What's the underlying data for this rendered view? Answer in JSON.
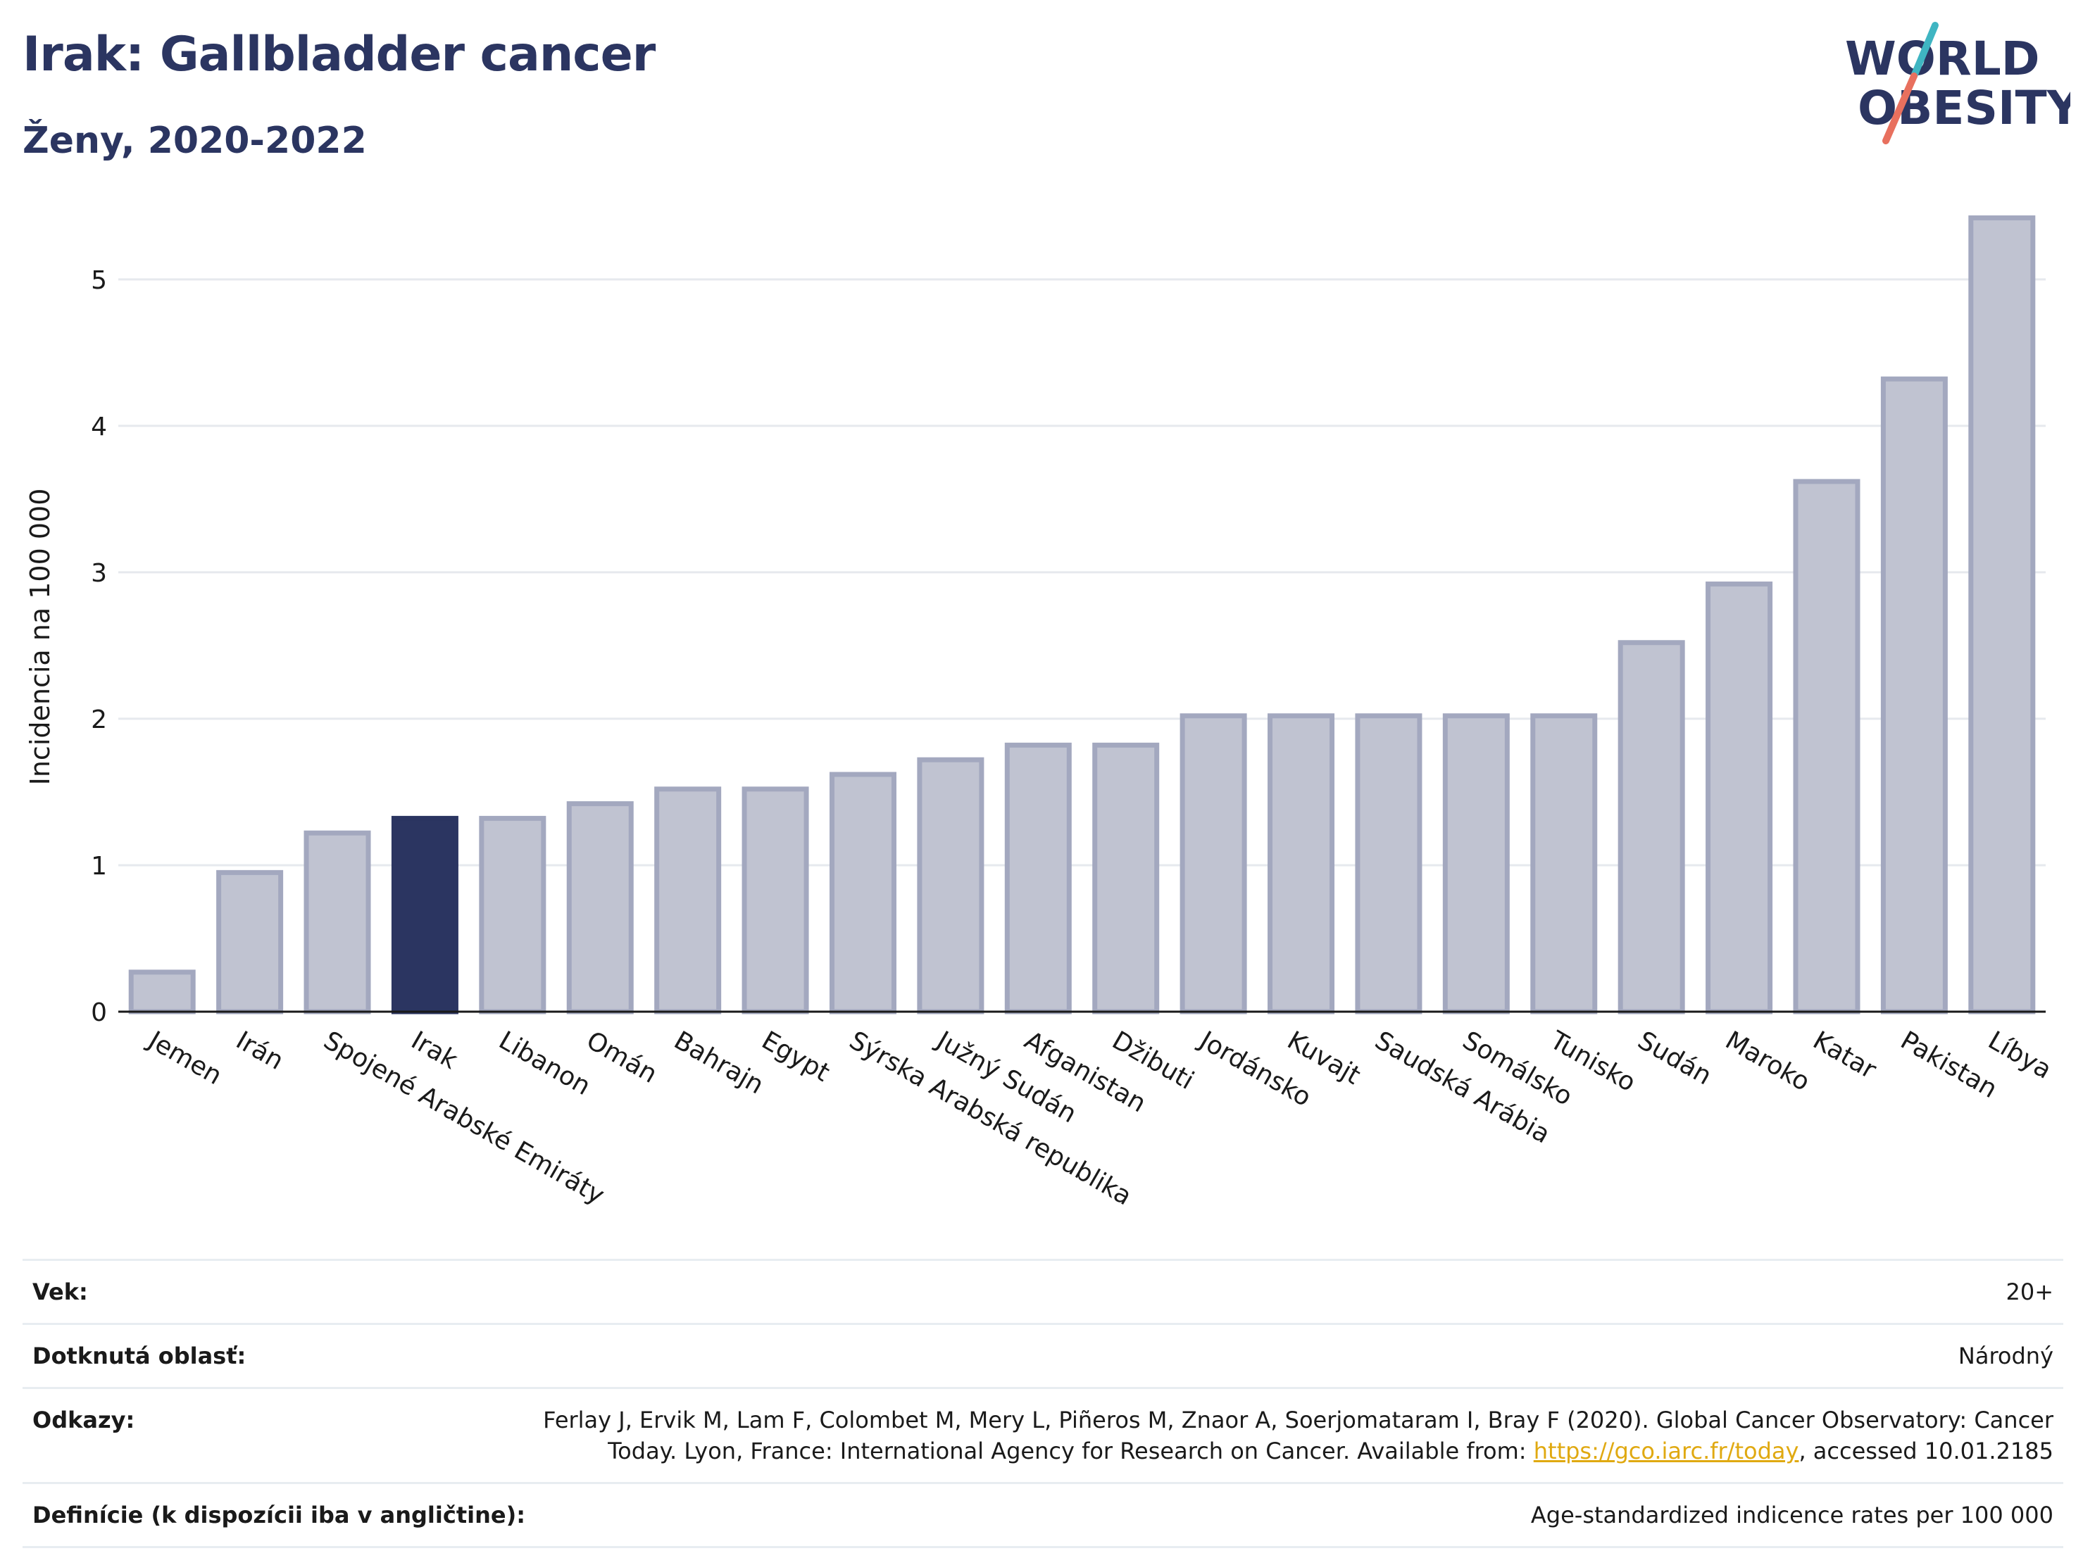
{
  "header": {
    "title": "Irak: Gallbladder cancer",
    "subtitle": "Ženy, 2020-2022"
  },
  "logo": {
    "line1": "WORLD",
    "line2": "OBESITY",
    "colors": {
      "text": "#2b3561",
      "slash_teal": "#3fb5c2",
      "slash_coral": "#e8705e"
    }
  },
  "chart_data": {
    "type": "bar",
    "title": "Irak: Gallbladder cancer",
    "subtitle": "Ženy, 2020-2022",
    "ylabel": "Incidencia na 100 000",
    "xlabel": "",
    "ylim": [
      0,
      5.6
    ],
    "yticks": [
      0,
      1,
      2,
      3,
      4,
      5
    ],
    "grid": true,
    "highlight": "Irak",
    "colors": {
      "bar": "#c0c3d1",
      "bar_border": "#a3a8bf",
      "highlight": "#2b3561"
    },
    "categories": [
      "Jemen",
      "Irán",
      "Spojené Arabské Emiráty",
      "Irak",
      "Libanon",
      "Omán",
      "Bahrajn",
      "Egypt",
      "Sýrska Arabská republika",
      "Južný Sudán",
      "Afganistan",
      "Džibuti",
      "Jordánsko",
      "Kuvajt",
      "Saudská Arábia",
      "Somálsko",
      "Tunisko",
      "Sudán",
      "Maroko",
      "Katar",
      "Pakistan",
      "Líbya"
    ],
    "values": [
      0.27,
      0.95,
      1.22,
      1.32,
      1.32,
      1.42,
      1.52,
      1.52,
      1.62,
      1.72,
      1.82,
      1.82,
      2.02,
      2.02,
      2.02,
      2.02,
      2.02,
      2.52,
      2.92,
      3.62,
      4.32,
      5.42
    ]
  },
  "info": {
    "rows": [
      {
        "label": "Vek:",
        "value": "20+"
      },
      {
        "label": "Dotknutá oblasť:",
        "value": "Národný"
      },
      {
        "label": "Odkazy:",
        "value_pre": "Ferlay J, Ervik M, Lam F, Colombet M, Mery L, Piñeros M, Znaor A, Soerjomataram I, Bray F (2020). Global Cancer Observatory: Cancer Today. Lyon, France: International Agency for Research on Cancer. Available from: ",
        "link": "https://gco.iarc.fr/today",
        "value_post": ", accessed 10.01.2185"
      },
      {
        "label": "Definície (k dispozícii iba v angličtine):",
        "value": "Age-standardized indicence rates per 100 000"
      }
    ]
  }
}
